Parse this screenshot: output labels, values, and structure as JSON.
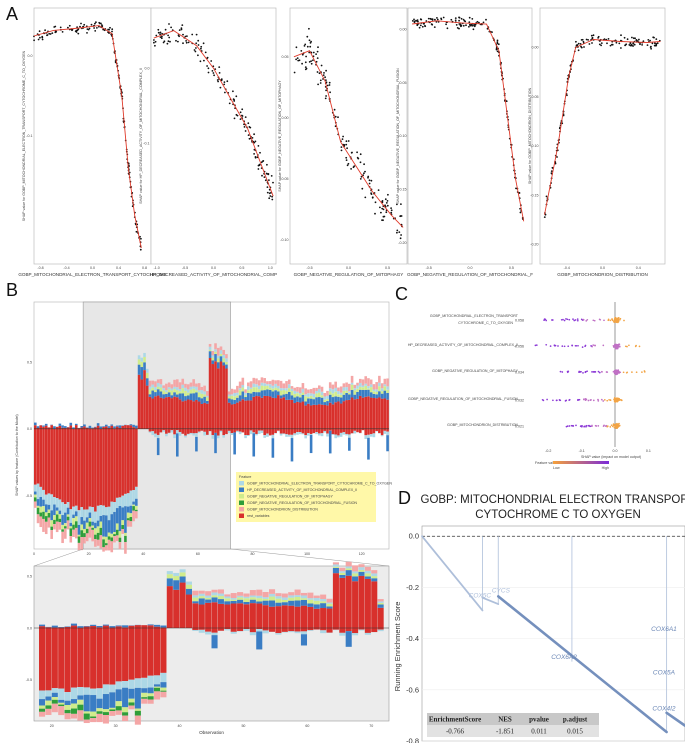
{
  "panels": [
    "A",
    "B",
    "C",
    "D"
  ],
  "colors": {
    "f1": "#add8e6",
    "f2": "#3a7dc4",
    "f3": "#d0ec8c",
    "f4": "#2f9e3a",
    "f5": "#f4a6a6",
    "rest": "#d8302c",
    "red": "#e03a2a",
    "d_line": "#7590bd"
  },
  "chart_data": [
    {
      "type": "scatter",
      "panel": "A",
      "subplot": 1,
      "xlabel": "GOBP_MITOCHONDRIAL_ELECTRON_TRANSPORT_CYTOCHROME",
      "ylabel": "SHAP value for GOBP_MITOCHONDRIAL_ELECTRON_TRANSPORT_CYTOCHROME_C_TO_OXYGEN",
      "xticks": [
        "-0.8",
        "-0.4",
        "0.0",
        "0.4",
        "0.8"
      ],
      "xlim": [
        -0.9,
        0.9
      ],
      "yticks": [
        "0.0",
        "-0.1"
      ],
      "ylim": [
        -0.26,
        0.06
      ],
      "curve": [
        [
          -0.9,
          0.025
        ],
        [
          -0.6,
          0.032
        ],
        [
          -0.2,
          0.035
        ],
        [
          0.1,
          0.038
        ],
        [
          0.3,
          0.028
        ],
        [
          0.45,
          -0.05
        ],
        [
          0.55,
          -0.14
        ],
        [
          0.65,
          -0.2
        ],
        [
          0.75,
          -0.24
        ]
      ],
      "trend": "flat",
      "tail": "down-right"
    },
    {
      "type": "scatter",
      "panel": "A",
      "subplot": 2,
      "xlabel": "HP_DECREASED_ACTIVITY_OF_MITOCHONDRIAL_COMP",
      "ylabel": "SHAP value for HP_DECREASED_ACTIVITY_OF_MITOCHONDRIAL_COMPLEX_II",
      "xticks": [
        "-1.0",
        "-0.5",
        "0.0",
        "0.5",
        "1.0"
      ],
      "xlim": [
        -1.1,
        1.1
      ],
      "yticks": [
        "0.0",
        "-0.1"
      ],
      "ylim": [
        -0.26,
        0.08
      ],
      "curve": [
        [
          -1.05,
          0.04
        ],
        [
          -0.7,
          0.05
        ],
        [
          -0.3,
          0.03
        ],
        [
          0.0,
          0.0
        ],
        [
          0.3,
          -0.04
        ],
        [
          0.6,
          -0.08
        ],
        [
          0.9,
          -0.14
        ],
        [
          1.05,
          -0.17
        ]
      ],
      "trend": "down",
      "tail": "down-right"
    },
    {
      "type": "scatter",
      "panel": "A",
      "subplot": 3,
      "xlabel": "GOBP_NEGATIVE_REGULATION_OF_MITOPHAGY",
      "ylabel": "SHAP value for GOBP_NEGATIVE_REGULATION_OF_MITOPHAGY",
      "xticks": [
        "-0.5",
        "0.0",
        "0.5"
      ],
      "xlim": [
        -0.75,
        0.75
      ],
      "yticks": [
        "0.05",
        "0.00",
        "-0.05",
        "-0.10"
      ],
      "ylim": [
        -0.12,
        0.09
      ],
      "curve": [
        [
          -0.7,
          0.05
        ],
        [
          -0.5,
          0.055
        ],
        [
          -0.3,
          0.03
        ],
        [
          -0.1,
          -0.02
        ],
        [
          0.1,
          -0.04
        ],
        [
          0.3,
          -0.06
        ],
        [
          0.55,
          -0.08
        ],
        [
          0.7,
          -0.09
        ]
      ],
      "trend": "down",
      "tail": "none"
    },
    {
      "type": "scatter",
      "panel": "A",
      "subplot": 4,
      "xlabel": "GOBP_NEGATIVE_REGULATION_OF_MITOCHONDRIAL_F",
      "ylabel": "SHAP value for GOBP_NEGATIVE_REGULATION_OF_MITOCHONDRIAL_FUSION",
      "xticks": [
        "-0.5",
        "0.0",
        "0.5"
      ],
      "xlim": [
        -0.75,
        0.75
      ],
      "yticks": [
        "0.00",
        "-0.05",
        "-0.10",
        "-0.15",
        "-0.20"
      ],
      "ylim": [
        -0.22,
        0.02
      ],
      "curve": [
        [
          -0.7,
          0.005
        ],
        [
          -0.4,
          0.008
        ],
        [
          -0.1,
          0.006
        ],
        [
          0.2,
          0.005
        ],
        [
          0.35,
          -0.02
        ],
        [
          0.45,
          -0.08
        ],
        [
          0.55,
          -0.14
        ],
        [
          0.65,
          -0.18
        ]
      ],
      "trend": "flat",
      "tail": "down-right"
    },
    {
      "type": "scatter",
      "panel": "A",
      "subplot": 5,
      "xlabel": "GOBP_MITOCHONDRION_DISTRIBUTION",
      "ylabel": "SHAP value for GOBP_MITOCHONDRION_DISTRIBUTION",
      "xticks": [
        "-0.4",
        "0.0",
        "0.4"
      ],
      "xlim": [
        -0.7,
        0.7
      ],
      "yticks": [
        "0.00",
        "-0.05",
        "-0.10",
        "-0.15",
        "-0.20"
      ],
      "ylim": [
        -0.22,
        0.04
      ],
      "curve": [
        [
          -0.65,
          -0.17
        ],
        [
          -0.5,
          -0.1
        ],
        [
          -0.38,
          -0.03
        ],
        [
          -0.3,
          0.0
        ],
        [
          -0.1,
          0.008
        ],
        [
          0.2,
          0.006
        ],
        [
          0.5,
          0.005
        ],
        [
          0.65,
          0.006
        ]
      ],
      "trend": "flat",
      "tail": "up-left"
    },
    {
      "type": "bar",
      "panel": "B",
      "subtype": "stacked",
      "ylabel": "SHAP values by feature (Contribution to the Model)",
      "xlabel": "",
      "xticks": [
        "0",
        "20",
        "40",
        "60",
        "80",
        "100",
        "120"
      ],
      "yticks": [
        "0.5",
        "0.0",
        "-0.5"
      ],
      "ylim": [
        -0.9,
        0.95
      ],
      "legend_title": "Feature",
      "legend": [
        "GOBP_MITOCHONDRIAL_ELECTRON_TRANSPORT_CYTOCHROME_C_TO_OXYGEN",
        "HP_DECREASED_ACTIVITY_OF_MITOCHONDRIAL_COMPLEX_II",
        "GOBP_NEGATIVE_REGULATION_OF_MITOPHAGY",
        "GOBP_NEGATIVE_REGULATION_OF_MITOCHONDRIAL_FUSION",
        "GOBP_MITOCHONDRION_DISTRIBUTION",
        "rest_variables"
      ],
      "observations": 130,
      "highlight_range": [
        18,
        72
      ]
    },
    {
      "type": "bar",
      "panel": "B",
      "subtype": "stacked-zoom",
      "xlabel": "Observation",
      "xticks": [
        "20",
        "30",
        "40",
        "50",
        "60",
        "70"
      ],
      "yticks": [
        "0.5",
        "0.0",
        "-0.5"
      ],
      "ylim": [
        -0.9,
        0.6
      ],
      "observations_range": [
        18,
        72
      ]
    },
    {
      "type": "scatter",
      "panel": "C",
      "subtype": "beeswarm",
      "xlabel": "SHAP value (impact on model output)",
      "xticks": [
        "-0.2",
        "-0.1",
        "0.0",
        "0.1"
      ],
      "xlim": [
        -0.27,
        0.15
      ],
      "features": [
        {
          "label": "GOBP_MITOCHONDRIAL_ELECTRON_TRANSPORT",
          "label2": "CYTOCHROME_C_TO_OXYGEN",
          "value": "0.058"
        },
        {
          "label": "HP_DECREASED_ACTIVITY_OF_MITOCHONDRIAL_COMPLEX_II",
          "value": "0.056"
        },
        {
          "label": "GOBP_NEGATIVE_REGULATION_OF_MITOPHAGY",
          "value": "0.034"
        },
        {
          "label": "GOBP_NEGATIVE_REGULATION_OF_MITOCHONDRIAL_FUSION",
          "value": "0.032"
        },
        {
          "label": "GOBP_MITOCHONDRION_DISTRIBUTION",
          "value": "0.021"
        }
      ],
      "colorbar_label": "Feature value",
      "colorbar_low": "Low",
      "colorbar_high": "High"
    },
    {
      "type": "line",
      "panel": "D",
      "subtype": "gsea-running-score",
      "title": "GOBP: MITOCHONDRIAL ELECTRON TRANSPORT",
      "title2": "CYTOCHROME C TO OXYGEN",
      "ylabel": "Running Enrichment Score",
      "yticks": [
        "0.0",
        "-0.2",
        "-0.4",
        "-0.6",
        "-0.8"
      ],
      "ylim": [
        -0.8,
        0.04
      ],
      "segments": [
        {
          "from": [
            0.0,
            0.0
          ],
          "to": [
            0.23,
            -0.29
          ]
        },
        {
          "from": [
            0.23,
            -0.24
          ],
          "to": [
            0.29,
            -0.265
          ]
        },
        {
          "from": [
            0.29,
            -0.235
          ],
          "to": [
            0.93,
            -0.765
          ]
        },
        {
          "from": [
            0.93,
            -0.69
          ],
          "to": [
            1.0,
            -0.74
          ]
        }
      ],
      "spikes": [
        [
          0.23,
          -0.29,
          0.0
        ],
        [
          0.29,
          -0.265,
          0.0
        ],
        [
          0.57,
          -0.49,
          0.0
        ],
        [
          0.93,
          -0.765,
          0.0
        ]
      ],
      "genes": [
        "COX5C",
        "CYCS",
        "COX6A2",
        "COX6A1",
        "COX5A",
        "COX4I2"
      ],
      "table": {
        "headers": [
          "EnrichmentScore",
          "NES",
          "pvalue",
          "p.adjust"
        ],
        "values": [
          "-0.766",
          "-1.851",
          "0.011",
          "0.015"
        ]
      }
    }
  ]
}
